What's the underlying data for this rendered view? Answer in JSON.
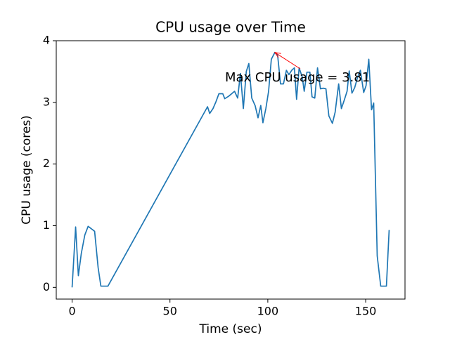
{
  "chart_data": {
    "type": "line",
    "title": "CPU usage over Time",
    "x_label": "Time (sec)",
    "y_label": "CPU usage (cores)",
    "x": [
      0,
      1.8,
      3.2,
      4.7,
      6.5,
      8.2,
      11.5,
      13.3,
      14.7,
      18.3,
      69.2,
      70.3,
      72,
      73.5,
      75,
      77,
      78,
      80,
      83,
      84.6,
      86,
      87.5,
      89,
      90.3,
      91.8,
      93.5,
      95,
      96.4,
      97.5,
      99,
      100.4,
      101.8,
      103.6,
      105,
      106.5,
      108,
      109.5,
      110.8,
      112.2,
      113.6,
      114.7,
      116,
      117.6,
      118.6,
      120,
      121.5,
      122.6,
      124,
      125.4,
      126.9,
      128.3,
      129.7,
      131.2,
      133,
      134.4,
      136.2,
      137.6,
      139,
      140.5,
      141.6,
      143,
      144.4,
      145.9,
      147.3,
      149,
      150.2,
      151.6,
      153,
      154.1,
      155.9,
      157.7,
      160.6,
      162
    ],
    "series": [
      {
        "color": "#1f77b4",
        "values": [
          0,
          0.98,
          0.19,
          0.55,
          0.85,
          0.99,
          0.91,
          0.32,
          0.02,
          0.02,
          2.93,
          2.82,
          2.9,
          3.01,
          3.14,
          3.14,
          3.06,
          3.1,
          3.18,
          3.07,
          3.47,
          2.9,
          3.5,
          3.63,
          3.07,
          2.95,
          2.75,
          2.95,
          2.67,
          2.9,
          3.18,
          3.7,
          3.81,
          3.77,
          3.3,
          3.3,
          3.52,
          3.45,
          3.52,
          3.56,
          3.05,
          3.56,
          3.41,
          3.18,
          3.49,
          3.49,
          3.09,
          3.07,
          3.56,
          3.22,
          3.23,
          3.22,
          2.78,
          2.66,
          2.84,
          3.3,
          2.9,
          3.03,
          3.18,
          3.51,
          3.15,
          3.24,
          3.41,
          3.52,
          3.16,
          3.27,
          3.7,
          2.88,
          2.99,
          0.51,
          0.02,
          0.02,
          0.93
        ]
      }
    ],
    "annotation": {
      "text": "Max CPU usage = 3.81",
      "color": "red"
    },
    "xlim": [
      -8.1,
      170.1
    ],
    "ylim": [
      -0.19,
      4.0
    ],
    "xticks": [
      0,
      50,
      100,
      150
    ],
    "yticks": [
      0,
      1,
      2,
      3,
      4
    ]
  }
}
